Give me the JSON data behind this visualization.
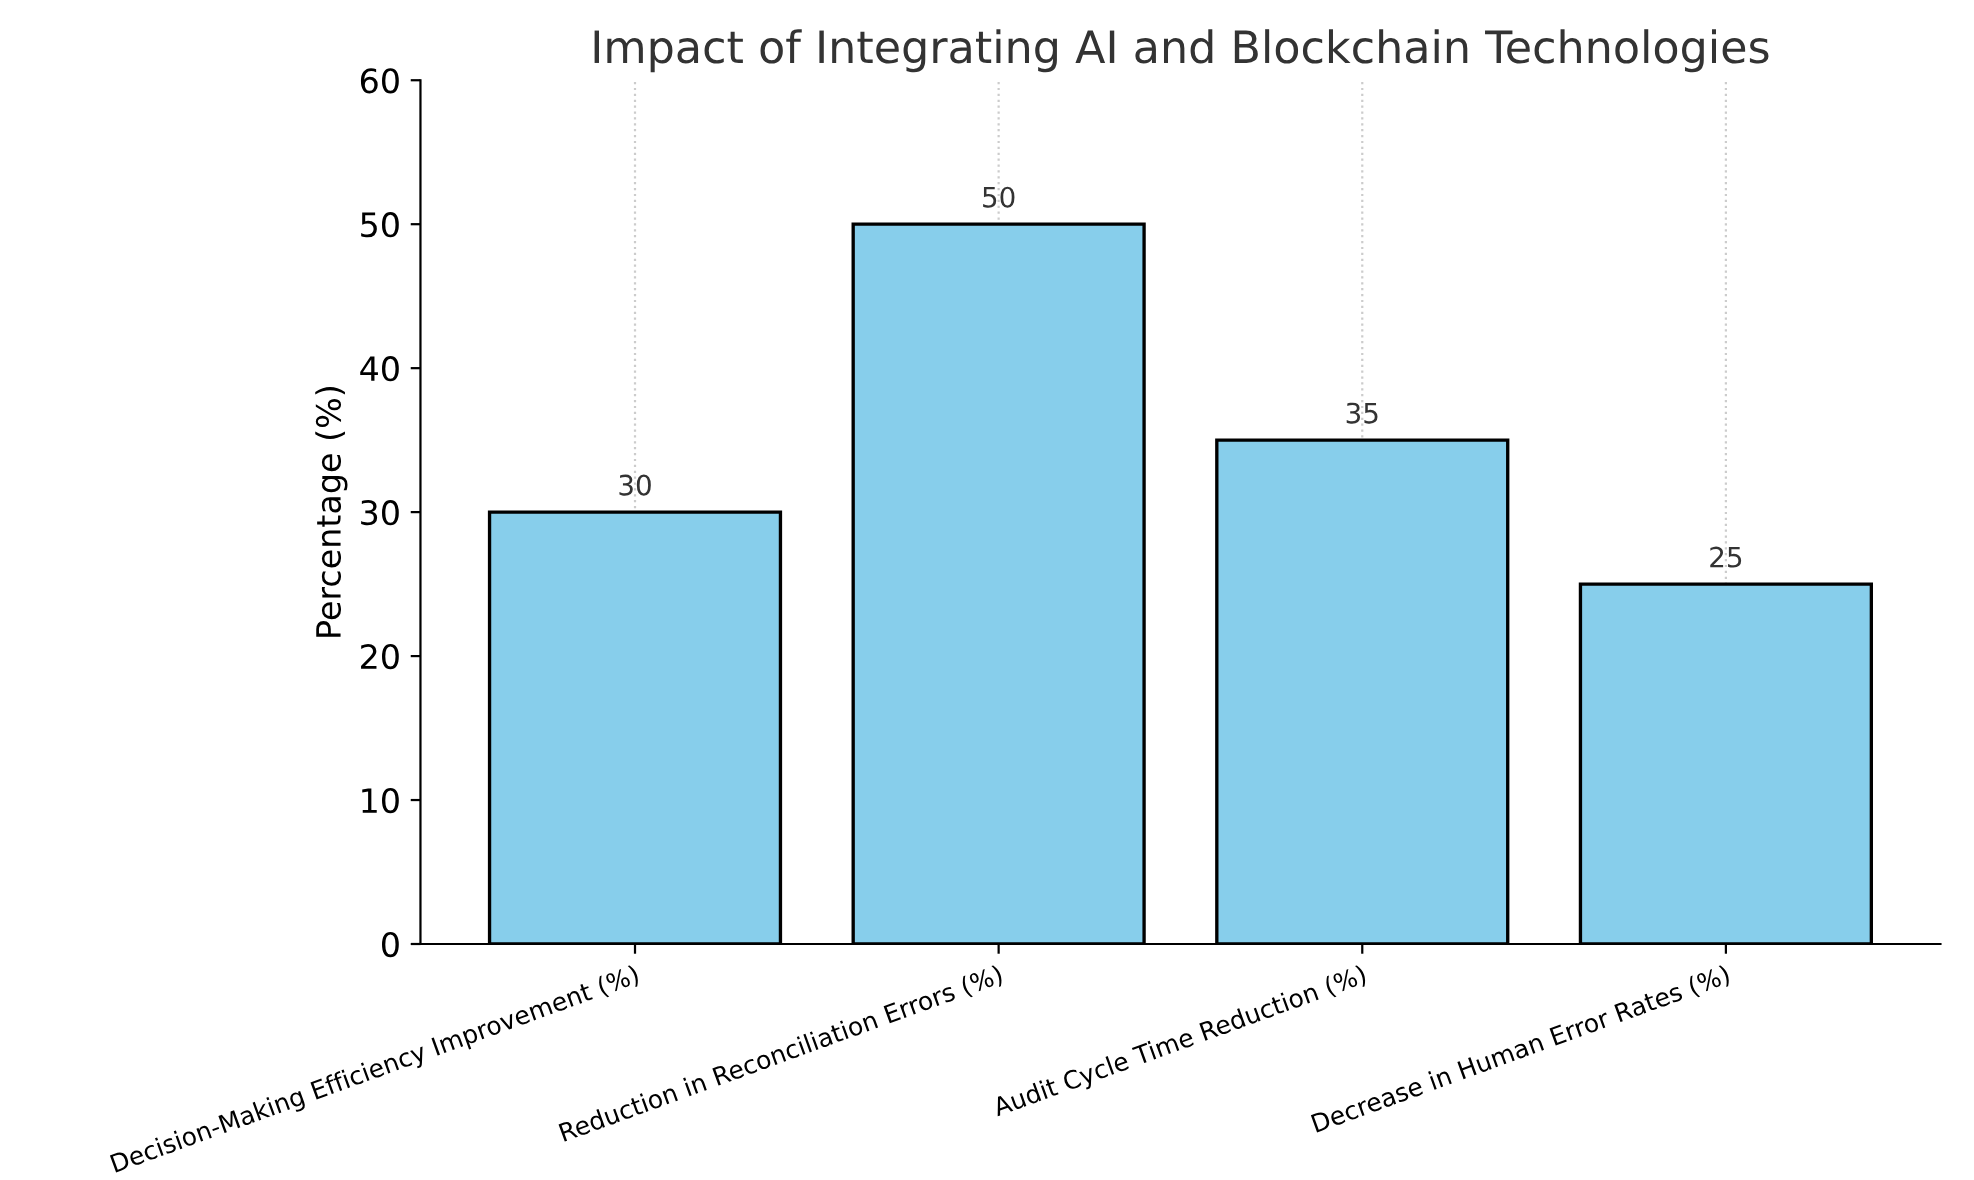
{
  "chart_data": {
    "type": "bar",
    "title": "Impact of Integrating AI and Blockchain Technologies",
    "ylabel": "Percentage (%)",
    "categories": [
      "Decision-Making Efficiency Improvement (%)",
      "Reduction in Reconciliation Errors (%)",
      "Audit Cycle Time Reduction (%)",
      "Decrease in Human Error Rates (%)"
    ],
    "values": [
      30,
      50,
      35,
      25
    ],
    "color": "#87ceeb",
    "ylim": [
      0,
      60
    ],
    "yticks": [
      0,
      10,
      20,
      30,
      40,
      50,
      60
    ],
    "grid": "x",
    "data_labels": true
  }
}
